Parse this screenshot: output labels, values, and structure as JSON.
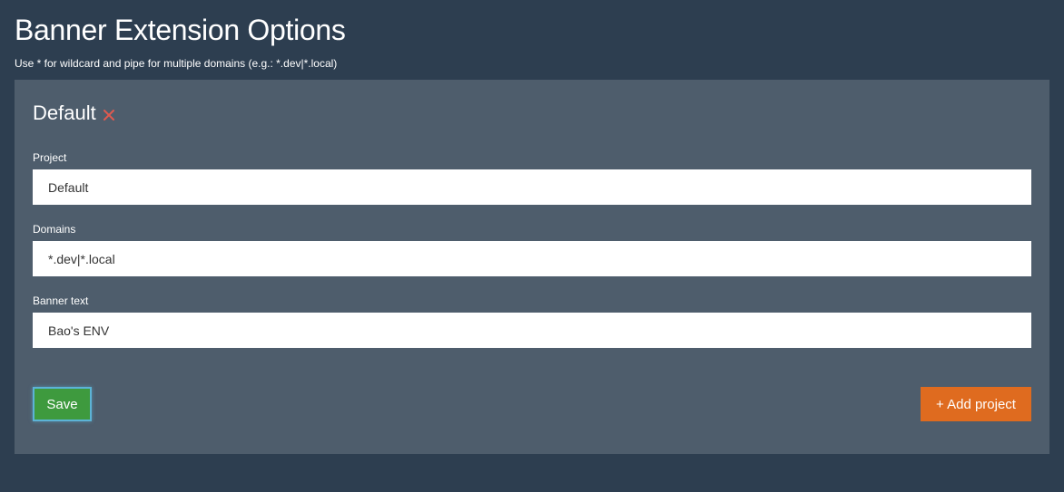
{
  "page": {
    "title": "Banner Extension Options",
    "hint": "Use * for wildcard and pipe for multiple domains (e.g.: *.dev|*.local)"
  },
  "project_card": {
    "title": "Default",
    "delete_icon": "close-icon",
    "delete_color": "#e05a4f",
    "fields": {
      "project": {
        "label": "Project",
        "value": "Default"
      },
      "domains": {
        "label": "Domains",
        "value": "*.dev|*.local"
      },
      "banner_text": {
        "label": "Banner text",
        "value": "Bao's ENV"
      }
    }
  },
  "actions": {
    "save_label": "Save",
    "add_project_label": "+ Add project"
  },
  "colors": {
    "background": "#2d3e50",
    "card": "#4e5d6c",
    "save": "#3e9a3e",
    "add_project": "#df6b1f"
  }
}
